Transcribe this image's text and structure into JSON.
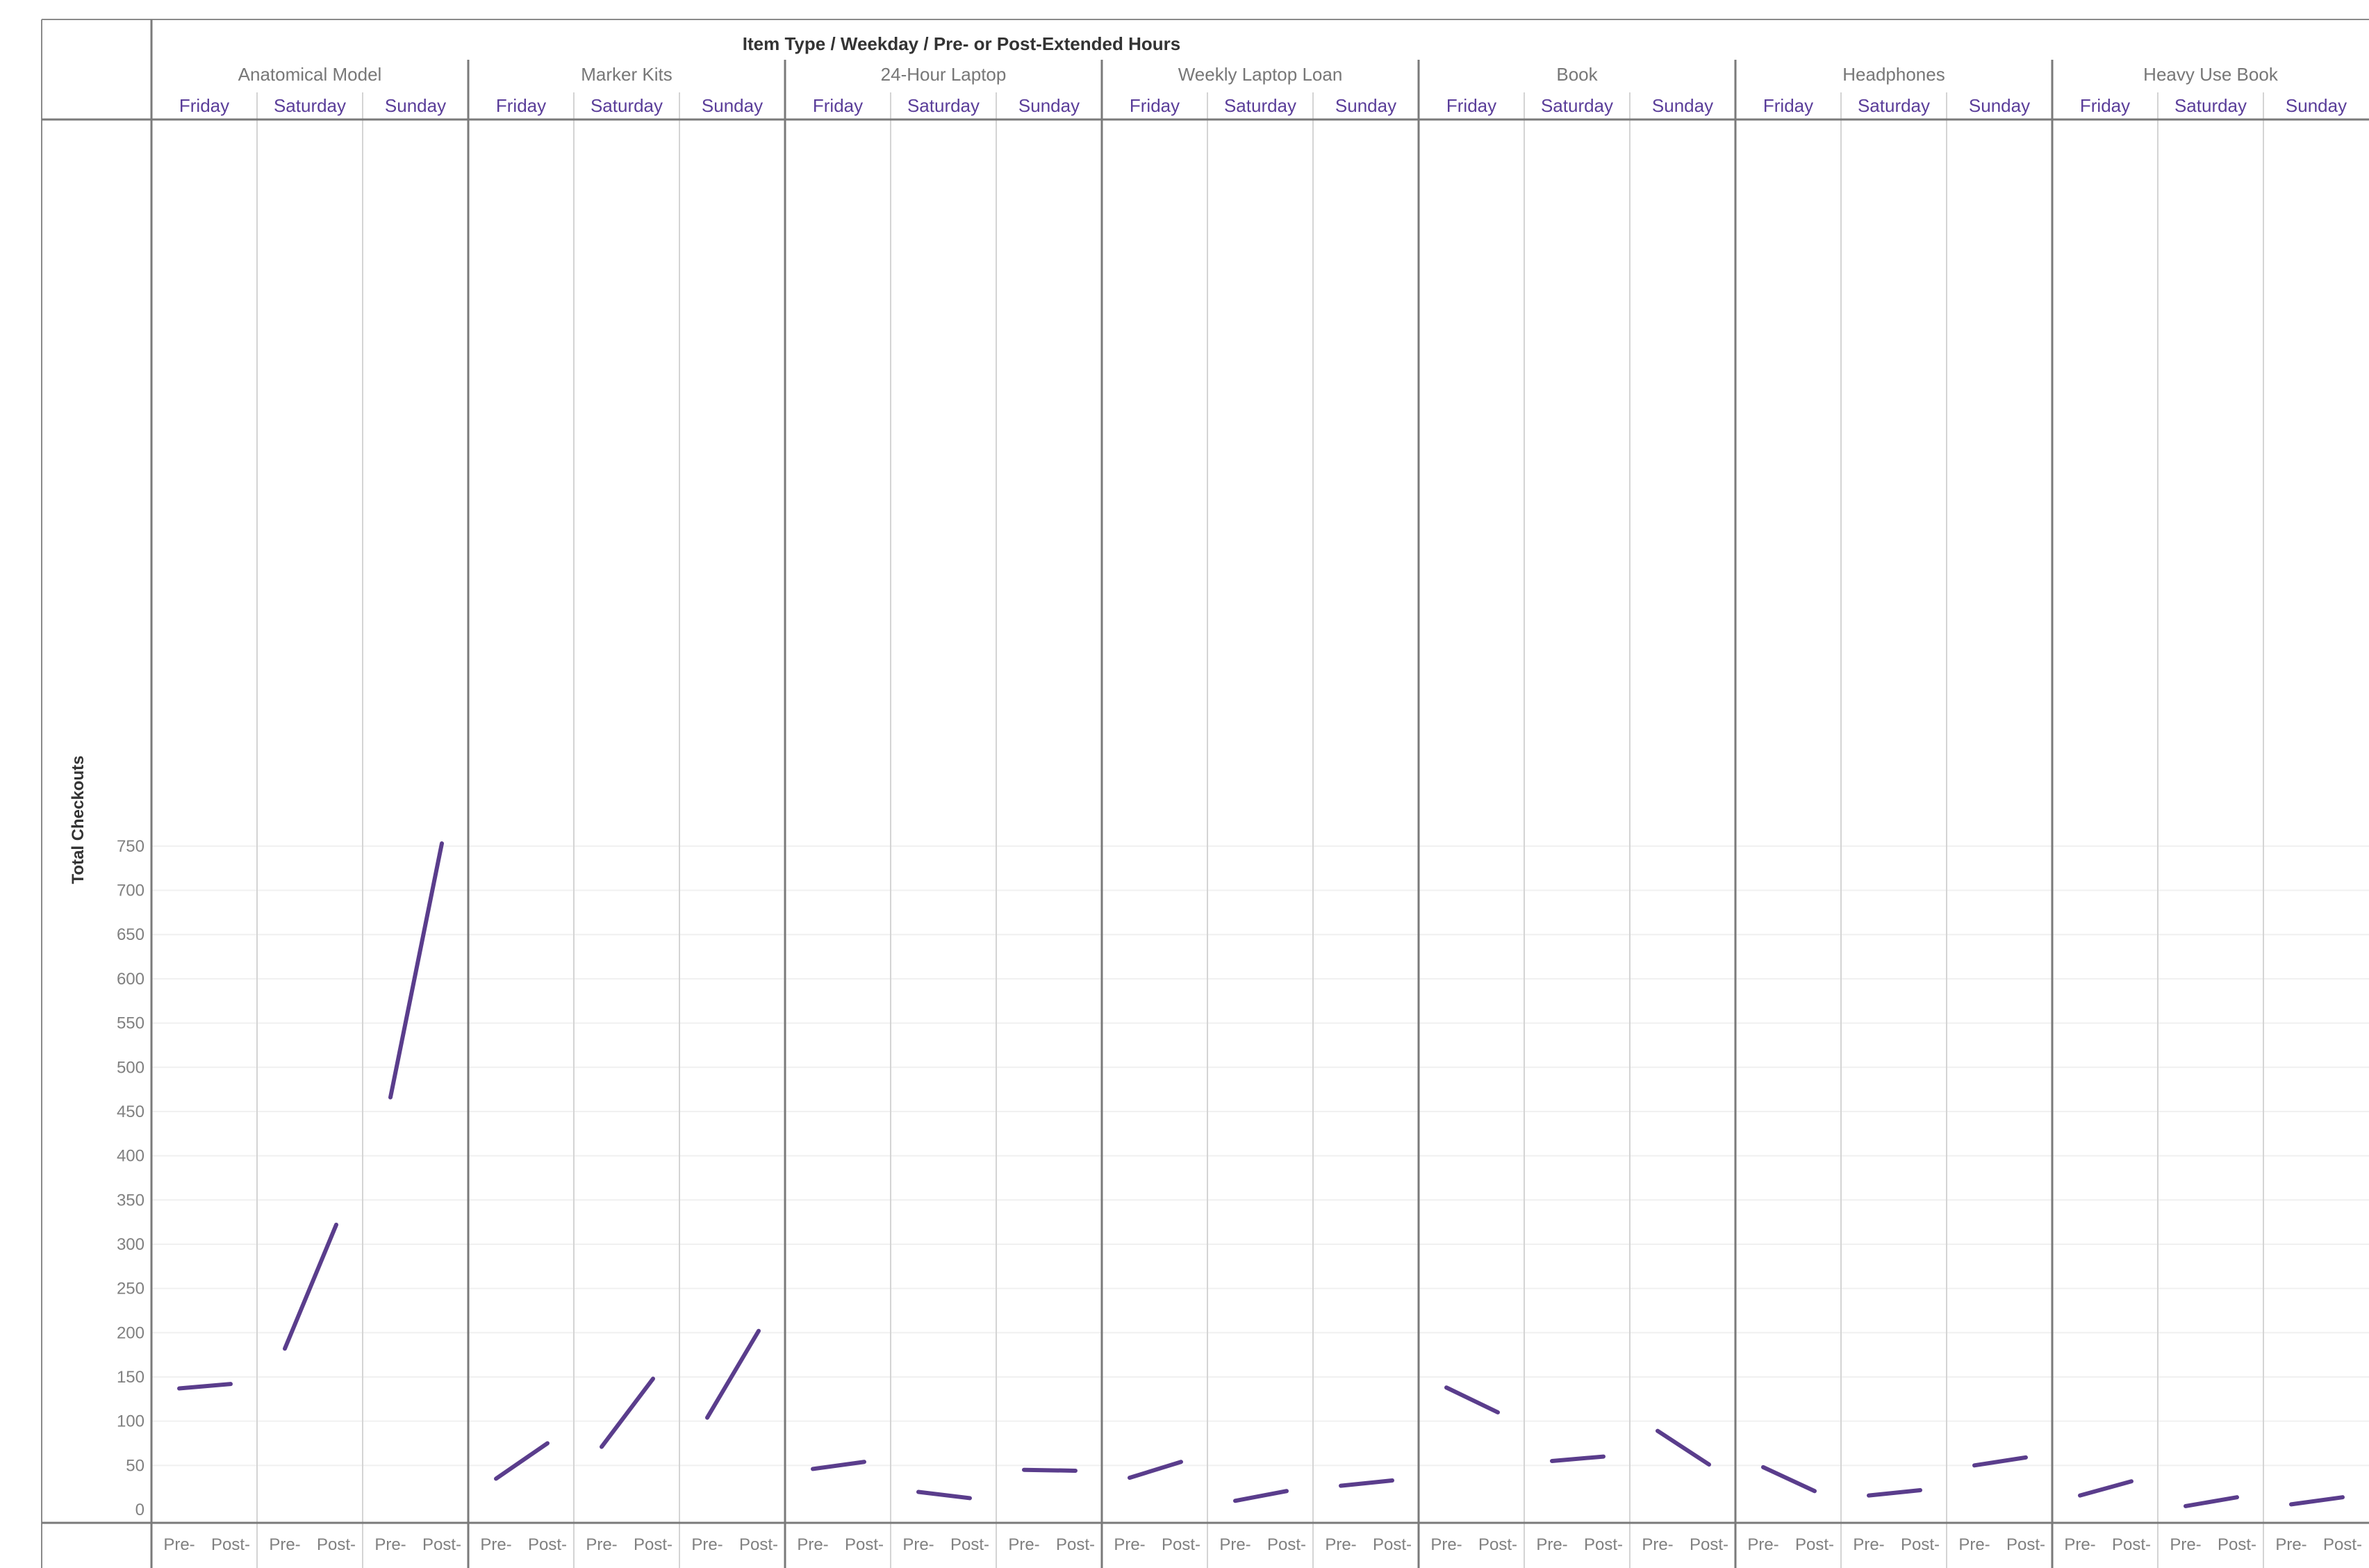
{
  "chart_data": {
    "type": "line",
    "title": "Item Type / Weekday / Pre- or Post-Extended Hours",
    "ylabel": "Total Checkouts",
    "ylim": [
      0,
      780
    ],
    "yticks": [
      0,
      50,
      100,
      150,
      200,
      250,
      300,
      350,
      400,
      450,
      500,
      550,
      600,
      650,
      700,
      750
    ],
    "grid": true,
    "x": [
      "Pre-",
      "Post-"
    ],
    "days": [
      "Friday",
      "Saturday",
      "Sunday"
    ],
    "line_color": "#5a3d8c",
    "groups": [
      {
        "name": "Anatomical Model",
        "panels": [
          {
            "day": "Friday",
            "values": [
              137,
              142
            ]
          },
          {
            "day": "Saturday",
            "values": [
              182,
              322
            ]
          },
          {
            "day": "Sunday",
            "values": [
              466,
              753
            ]
          }
        ]
      },
      {
        "name": "Marker Kits",
        "panels": [
          {
            "day": "Friday",
            "values": [
              35,
              75
            ]
          },
          {
            "day": "Saturday",
            "values": [
              71,
              148
            ]
          },
          {
            "day": "Sunday",
            "values": [
              104,
              202
            ]
          }
        ]
      },
      {
        "name": "24-Hour Laptop",
        "panels": [
          {
            "day": "Friday",
            "values": [
              46,
              54
            ]
          },
          {
            "day": "Saturday",
            "values": [
              20,
              13
            ]
          },
          {
            "day": "Sunday",
            "values": [
              45,
              44
            ]
          }
        ]
      },
      {
        "name": "Weekly Laptop Loan",
        "panels": [
          {
            "day": "Friday",
            "values": [
              36,
              54
            ]
          },
          {
            "day": "Saturday",
            "values": [
              10,
              21
            ]
          },
          {
            "day": "Sunday",
            "values": [
              27,
              33
            ]
          }
        ]
      },
      {
        "name": "Book",
        "panels": [
          {
            "day": "Friday",
            "values": [
              138,
              110
            ]
          },
          {
            "day": "Saturday",
            "values": [
              55,
              60
            ]
          },
          {
            "day": "Sunday",
            "values": [
              89,
              51
            ]
          }
        ]
      },
      {
        "name": "Headphones",
        "panels": [
          {
            "day": "Friday",
            "values": [
              48,
              21
            ]
          },
          {
            "day": "Saturday",
            "values": [
              16,
              22
            ]
          },
          {
            "day": "Sunday",
            "values": [
              50,
              59
            ]
          }
        ]
      },
      {
        "name": "Heavy Use Book",
        "panels": [
          {
            "day": "Friday",
            "values": [
              16,
              32
            ]
          },
          {
            "day": "Saturday",
            "values": [
              4,
              14
            ]
          },
          {
            "day": "Sunday",
            "values": [
              6,
              14
            ]
          }
        ]
      }
    ]
  }
}
